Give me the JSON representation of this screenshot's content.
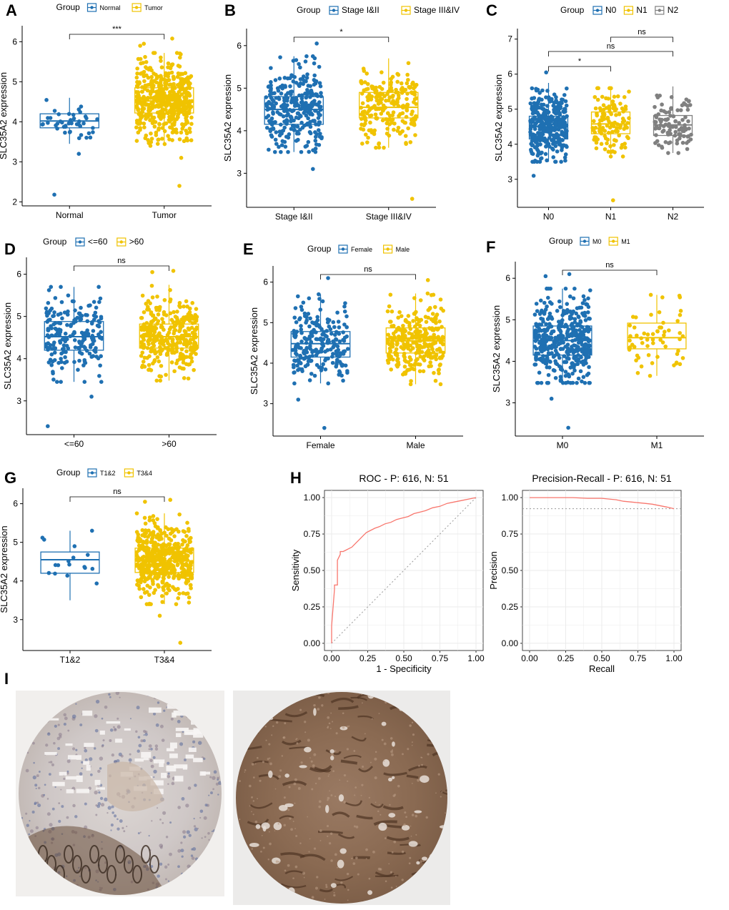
{
  "colors": {
    "blue": "#1f70b2",
    "yellow": "#f0c300",
    "gray": "#808080",
    "curve": "#f8766d",
    "grid": "#ebebeb"
  },
  "figure_labels": [
    "A",
    "B",
    "C",
    "D",
    "E",
    "F",
    "G",
    "H",
    "I"
  ],
  "chart_data": [
    {
      "panel": "A",
      "type": "box+jitter",
      "legend_title": "Group",
      "legend_style": "small",
      "ylabel": "SLC35A2 expression",
      "ylim": [
        1.9,
        6.4
      ],
      "yticks": [
        2,
        3,
        4,
        5,
        6
      ],
      "groups": [
        {
          "name": "Normal",
          "color": "blue",
          "n": 45,
          "q1": 3.85,
          "median": 4.02,
          "q3": 4.2,
          "whisker_low": 3.45,
          "whisker_high": 4.6,
          "outliers": [
            2.18,
            3.2
          ]
        },
        {
          "name": "Tumor",
          "color": "yellow",
          "n": 500,
          "q1": 4.22,
          "median": 4.52,
          "q3": 4.85,
          "whisker_low": 3.4,
          "whisker_high": 5.72,
          "outliers": [
            2.4,
            3.1,
            5.95,
            6.08,
            5.9
          ]
        }
      ],
      "comparisons": [
        {
          "from": "Normal",
          "to": "Tumor",
          "label": "***"
        }
      ]
    },
    {
      "panel": "B",
      "type": "box+jitter",
      "legend_title": "Group",
      "legend_style": "normal",
      "ylabel": "SLC35A2 expression",
      "ylim": [
        2.2,
        6.4
      ],
      "yticks": [
        3,
        4,
        5,
        6
      ],
      "groups": [
        {
          "name": "Stage I&II",
          "color": "blue",
          "n": 310,
          "q1": 4.15,
          "median": 4.5,
          "q3": 4.8,
          "whisker_low": 3.5,
          "whisker_high": 5.75,
          "outliers": [
            3.1,
            6.05
          ]
        },
        {
          "name": "Stage III&IV",
          "color": "yellow",
          "n": 220,
          "q1": 4.3,
          "median": 4.55,
          "q3": 4.9,
          "whisker_low": 3.6,
          "whisker_high": 5.7,
          "outliers": [
            2.4
          ]
        }
      ],
      "comparisons": [
        {
          "from": "Stage I&II",
          "to": "Stage III&IV",
          "label": "*"
        }
      ]
    },
    {
      "panel": "C",
      "type": "box+jitter",
      "legend_title": "Group",
      "legend_style": "normal",
      "ylabel": "SLC35A2 expression",
      "ylim": [
        2.2,
        7.3
      ],
      "yticks": [
        3,
        4,
        5,
        6,
        7
      ],
      "groups": [
        {
          "name": "N0",
          "color": "blue",
          "n": 330,
          "q1": 4.15,
          "median": 4.5,
          "q3": 4.8,
          "whisker_low": 3.5,
          "whisker_high": 5.75,
          "outliers": [
            3.1,
            6.05
          ]
        },
        {
          "name": "N1",
          "color": "yellow",
          "n": 120,
          "q1": 4.3,
          "median": 4.58,
          "q3": 4.92,
          "whisker_low": 3.65,
          "whisker_high": 5.6,
          "outliers": [
            2.4
          ]
        },
        {
          "name": "N2",
          "color": "gray",
          "n": 100,
          "q1": 4.25,
          "median": 4.55,
          "q3": 4.82,
          "whisker_low": 3.75,
          "whisker_high": 5.65,
          "outliers": []
        }
      ],
      "comparisons": [
        {
          "from": "N0",
          "to": "N1",
          "label": "*"
        },
        {
          "from": "N0",
          "to": "N2",
          "label": "ns"
        },
        {
          "from": "N1",
          "to": "N2",
          "label": "ns"
        }
      ]
    },
    {
      "panel": "D",
      "type": "box+jitter",
      "legend_title": "Group",
      "legend_style": "normal",
      "ylabel": "SLC35A2 expression",
      "ylim": [
        2.2,
        6.4
      ],
      "yticks": [
        3,
        4,
        5,
        6
      ],
      "groups": [
        {
          "name": "<=60",
          "color": "blue",
          "n": 200,
          "q1": 4.2,
          "median": 4.52,
          "q3": 4.88,
          "whisker_low": 3.45,
          "whisker_high": 5.7,
          "outliers": [
            2.4,
            3.1
          ]
        },
        {
          "name": ">60",
          "color": "yellow",
          "n": 330,
          "q1": 4.25,
          "median": 4.52,
          "q3": 4.82,
          "whisker_low": 3.48,
          "whisker_high": 5.75,
          "outliers": [
            6.08,
            6.05
          ]
        }
      ],
      "comparisons": [
        {
          "from": "<=60",
          "to": ">60",
          "label": "ns"
        }
      ]
    },
    {
      "panel": "E",
      "type": "box+jitter",
      "legend_title": "Group",
      "legend_style": "small",
      "ylabel": "SLC35A2 expression",
      "ylim": [
        2.2,
        6.4
      ],
      "yticks": [
        3,
        4,
        5,
        6
      ],
      "groups": [
        {
          "name": "Female",
          "color": "blue",
          "n": 230,
          "q1": 4.15,
          "median": 4.48,
          "q3": 4.78,
          "whisker_low": 3.5,
          "whisker_high": 5.7,
          "outliers": [
            2.4,
            3.1,
            6.1
          ]
        },
        {
          "name": "Male",
          "color": "yellow",
          "n": 300,
          "q1": 4.25,
          "median": 4.55,
          "q3": 4.87,
          "whisker_low": 3.48,
          "whisker_high": 5.72,
          "outliers": [
            6.05
          ]
        }
      ],
      "comparisons": [
        {
          "from": "Female",
          "to": "Male",
          "label": "ns"
        }
      ]
    },
    {
      "panel": "F",
      "type": "box+jitter",
      "legend_title": "Group",
      "legend_style": "small",
      "ylabel": "SLC35A2 expression",
      "ylim": [
        2.2,
        6.4
      ],
      "yticks": [
        3,
        4,
        5,
        6
      ],
      "groups": [
        {
          "name": "M0",
          "color": "blue",
          "n": 400,
          "q1": 4.15,
          "median": 4.5,
          "q3": 4.85,
          "whisker_low": 3.48,
          "whisker_high": 5.75,
          "outliers": [
            2.4,
            3.1,
            6.1,
            6.05
          ]
        },
        {
          "name": "M1",
          "color": "yellow",
          "n": 60,
          "q1": 4.3,
          "median": 4.57,
          "q3": 4.92,
          "whisker_low": 3.65,
          "whisker_high": 5.6,
          "outliers": []
        }
      ],
      "comparisons": [
        {
          "from": "M0",
          "to": "M1",
          "label": "ns"
        }
      ]
    },
    {
      "panel": "G",
      "type": "box+jitter",
      "legend_title": "Group",
      "legend_style": "small",
      "ylabel": "SLC35A2 expression",
      "ylim": [
        2.2,
        6.4
      ],
      "yticks": [
        3,
        4,
        5,
        6
      ],
      "groups": [
        {
          "name": "T1&2",
          "color": "blue",
          "n": 17,
          "q1": 4.2,
          "median": 4.55,
          "q3": 4.75,
          "whisker_low": 3.5,
          "whisker_high": 5.3,
          "outliers": []
        },
        {
          "name": "T3&4",
          "color": "yellow",
          "n": 500,
          "q1": 4.22,
          "median": 4.52,
          "q3": 4.85,
          "whisker_low": 3.4,
          "whisker_high": 5.75,
          "outliers": [
            2.4,
            3.1,
            6.1,
            6.05
          ]
        }
      ],
      "comparisons": [
        {
          "from": "T1&2",
          "to": "T3&4",
          "label": "ns"
        }
      ]
    },
    {
      "panel": "H",
      "type": "line",
      "title": "ROC - P: 616, N: 51",
      "xlabel": "1 - Specificity",
      "ylabel": "Sensitivity",
      "xlim": [
        0,
        1
      ],
      "ylim": [
        0,
        1
      ],
      "xticks": [
        "0.00",
        "0.25",
        "0.50",
        "0.75",
        "1.00"
      ],
      "yticks": [
        "0.00",
        "0.25",
        "0.50",
        "0.75",
        "1.00"
      ],
      "grid": true,
      "x": [
        0.0,
        0.0,
        0.02,
        0.02,
        0.04,
        0.04,
        0.06,
        0.06,
        0.08,
        0.1,
        0.12,
        0.14,
        0.16,
        0.18,
        0.2,
        0.22,
        0.24,
        0.26,
        0.3,
        0.33,
        0.37,
        0.41,
        0.45,
        0.49,
        0.53,
        0.57,
        0.61,
        0.65,
        0.7,
        0.75,
        0.8,
        0.85,
        0.9,
        0.95,
        1.0
      ],
      "y": [
        0.0,
        0.12,
        0.37,
        0.4,
        0.4,
        0.57,
        0.61,
        0.63,
        0.63,
        0.64,
        0.65,
        0.66,
        0.68,
        0.7,
        0.72,
        0.74,
        0.76,
        0.77,
        0.79,
        0.8,
        0.82,
        0.83,
        0.85,
        0.86,
        0.87,
        0.89,
        0.9,
        0.91,
        0.93,
        0.94,
        0.96,
        0.97,
        0.98,
        0.99,
        1.0
      ],
      "reference": "diagonal"
    },
    {
      "panel": "H",
      "type": "line",
      "title": "Precision-Recall - P: 616, N: 51",
      "xlabel": "Recall",
      "ylabel": "Precision",
      "xlim": [
        0,
        1
      ],
      "ylim": [
        0,
        1
      ],
      "xticks": [
        "0.00",
        "0.25",
        "0.50",
        "0.75",
        "1.00"
      ],
      "yticks": [
        "0.00",
        "0.25",
        "0.50",
        "0.75",
        "1.00"
      ],
      "grid": true,
      "x": [
        0.0,
        0.1,
        0.2,
        0.3,
        0.4,
        0.5,
        0.55,
        0.6,
        0.65,
        0.7,
        0.75,
        0.8,
        0.85,
        0.9,
        0.95,
        1.0
      ],
      "y": [
        1.0,
        1.0,
        1.0,
        1.0,
        0.995,
        0.995,
        0.99,
        0.985,
        0.975,
        0.97,
        0.965,
        0.96,
        0.955,
        0.945,
        0.935,
        0.924
      ],
      "baseline": 0.924
    }
  ]
}
